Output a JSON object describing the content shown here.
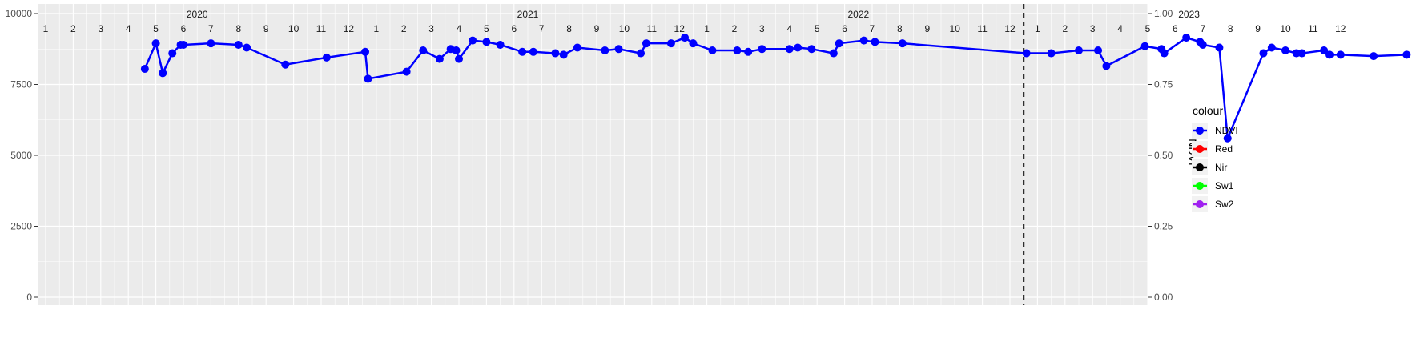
{
  "chart_data": {
    "type": "line",
    "y_left_lim": [
      0,
      10000
    ],
    "y_left_ticks": [
      "0",
      "2500",
      "5000",
      "7500",
      "10000"
    ],
    "y_right_label": "NDVI",
    "y_right_lim": [
      0,
      1
    ],
    "y_right_ticks": [
      "0.00",
      "0.25",
      "0.50",
      "0.75",
      "1.00"
    ],
    "x_range": [
      0,
      47.7
    ],
    "month_labels": [
      "1",
      "2",
      "3",
      "4",
      "5",
      "6",
      "7",
      "8",
      "9",
      "10",
      "11",
      "12",
      "1",
      "2",
      "3",
      "4",
      "5",
      "6",
      "7",
      "8",
      "9",
      "10",
      "11",
      "12",
      "1",
      "2",
      "3",
      "4",
      "5",
      "6",
      "7",
      "8",
      "9",
      "10",
      "11",
      "12",
      "1",
      "2",
      "3",
      "4",
      "5",
      "6",
      "7",
      "8",
      "9",
      "10",
      "11",
      "12"
    ],
    "years": [
      "2020",
      "2021",
      "2022",
      "2023"
    ],
    "dashed_vline_x": 36.0,
    "legend_title": "colour",
    "grid": true,
    "legend_position": "right",
    "series": [
      {
        "name": "NDVI",
        "color": "#0000FF",
        "axis": "right",
        "x": [
          3.6,
          4.0,
          4.25,
          4.6,
          4.9,
          5.0,
          6.0,
          7.0,
          7.3,
          8.7,
          10.2,
          11.6,
          11.7,
          13.1,
          13.7,
          14.3,
          14.7,
          14.9,
          15.0,
          15.5,
          16.0,
          16.5,
          17.3,
          17.7,
          18.5,
          18.8,
          19.3,
          20.3,
          20.8,
          21.6,
          21.8,
          22.7,
          23.2,
          23.5,
          24.2,
          25.1,
          25.5,
          26.0,
          27.0,
          27.3,
          27.8,
          28.6,
          28.8,
          29.7,
          30.1,
          31.1,
          35.6,
          36.5,
          37.5,
          38.2,
          38.5,
          39.9,
          40.5,
          40.6,
          41.4,
          41.9,
          42.0,
          42.6,
          42.9,
          44.2,
          44.5,
          45.0,
          45.4,
          45.6,
          46.4,
          46.6,
          47.0,
          48.2,
          49.4
        ],
        "y": [
          0.805,
          0.895,
          0.79,
          0.86,
          0.89,
          0.89,
          0.895,
          0.89,
          0.88,
          0.82,
          0.845,
          0.865,
          0.77,
          0.795,
          0.87,
          0.84,
          0.875,
          0.87,
          0.84,
          0.905,
          0.9,
          0.89,
          0.865,
          0.865,
          0.86,
          0.855,
          0.88,
          0.87,
          0.875,
          0.86,
          0.895,
          0.895,
          0.915,
          0.895,
          0.87,
          0.87,
          0.865,
          0.875,
          0.875,
          0.88,
          0.875,
          0.86,
          0.895,
          0.905,
          0.9,
          0.895,
          0.86,
          0.86,
          0.87,
          0.87,
          0.815,
          0.885,
          0.875,
          0.86,
          0.915,
          0.9,
          0.89,
          0.88,
          0.56,
          0.86,
          0.88,
          0.87,
          0.86,
          0.86,
          0.87,
          0.855,
          0.855,
          0.85,
          0.855
        ]
      },
      {
        "name": "Red",
        "color": "#FF0000",
        "axis": "left",
        "y": []
      },
      {
        "name": "Nir",
        "color": "#000000",
        "axis": "left",
        "y": []
      },
      {
        "name": "Sw1",
        "color": "#00FF00",
        "axis": "left",
        "y": []
      },
      {
        "name": "Sw2",
        "color": "#A020F0",
        "axis": "left",
        "y": []
      }
    ]
  }
}
